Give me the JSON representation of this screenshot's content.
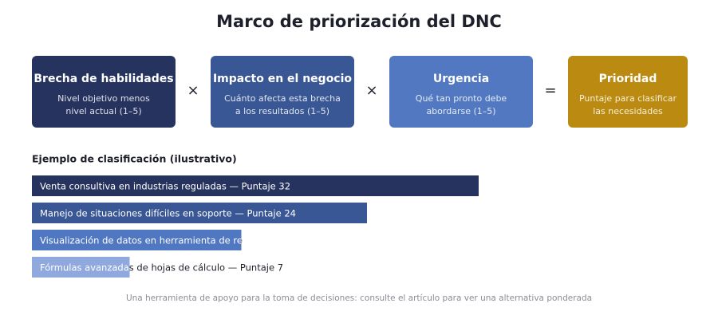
{
  "title": "Marco de priorización del DNC",
  "factors": [
    {
      "title": "Brecha de habilidades",
      "description": [
        "Nivel objetivo menos",
        "nivel actual (1–5)"
      ],
      "color": "#27335f"
    },
    {
      "title": "Impacto en el negocio",
      "description": [
        "Cuánto afecta esta brecha",
        "a los resultados (1–5)"
      ],
      "color": "#3a5795"
    },
    {
      "title": "Urgencia",
      "description": [
        "Qué tan pronto debe",
        "abordarse (1–5)"
      ],
      "color": "#5178c0"
    },
    {
      "title": "Prioridad",
      "description": [
        "Puntaje para clasificar",
        "las necesidades"
      ],
      "color": "#bb8a10"
    }
  ],
  "operators": [
    "×",
    "×",
    "="
  ],
  "ranking": {
    "title": "Ejemplo de clasificación (ilustrativo)",
    "items": [
      {
        "label": "Venta consultiva en industrias reguladas — Puntaje 32",
        "score": 32,
        "color": "#27335f"
      },
      {
        "label": "Manejo de situaciones difíciles en soporte — Puntaje 24",
        "score": 24,
        "color": "#3a5795"
      },
      {
        "label": "Visualización de datos en herramienta de re",
        "score": 15,
        "color": "#5078c2"
      },
      {
        "label": "Fórmulas avanzadas de hojas de cálculo — Puntaje 7",
        "score": 7,
        "color": "#8fa8dd"
      }
    ]
  },
  "footer": "Una herramienta de apoyo para la toma de decisiones: consulte el artículo para ver una alternativa ponderada"
}
